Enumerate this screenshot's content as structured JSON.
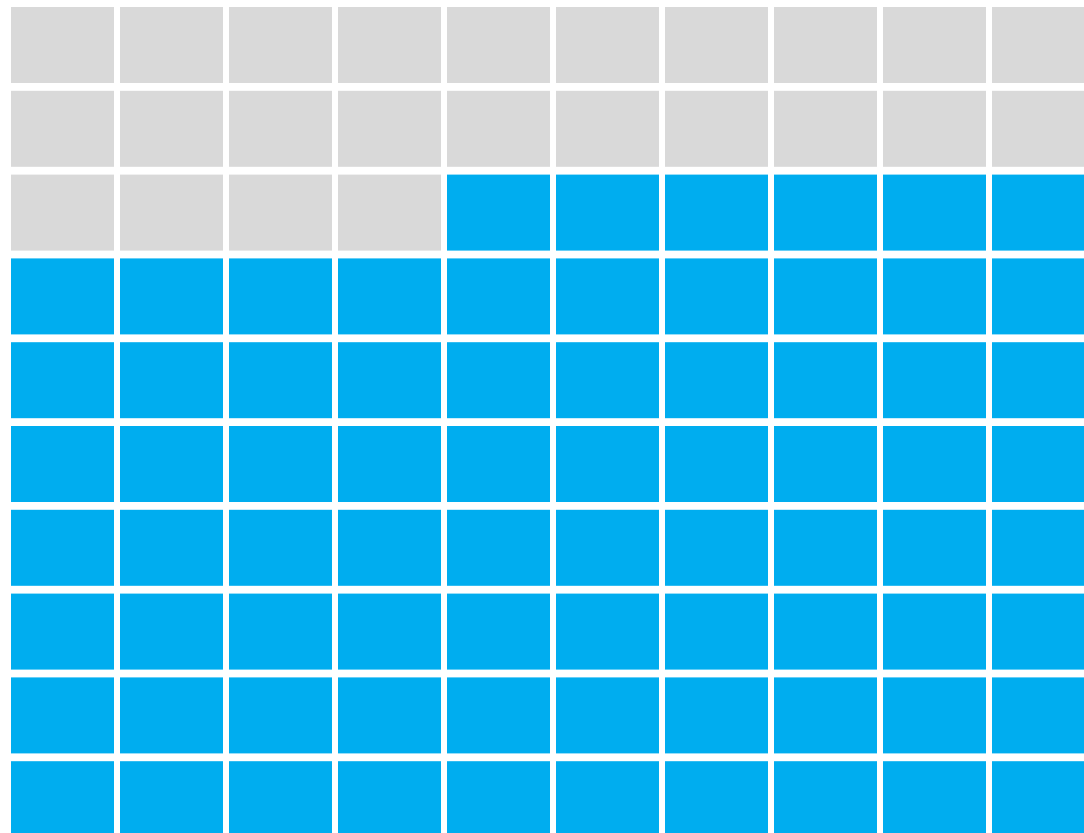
{
  "chart_data": {
    "type": "waffle",
    "rows": 10,
    "columns": 10,
    "values": [
      24,
      76
    ],
    "colors": [
      "#d9d9d9",
      "#00adef"
    ]
  }
}
